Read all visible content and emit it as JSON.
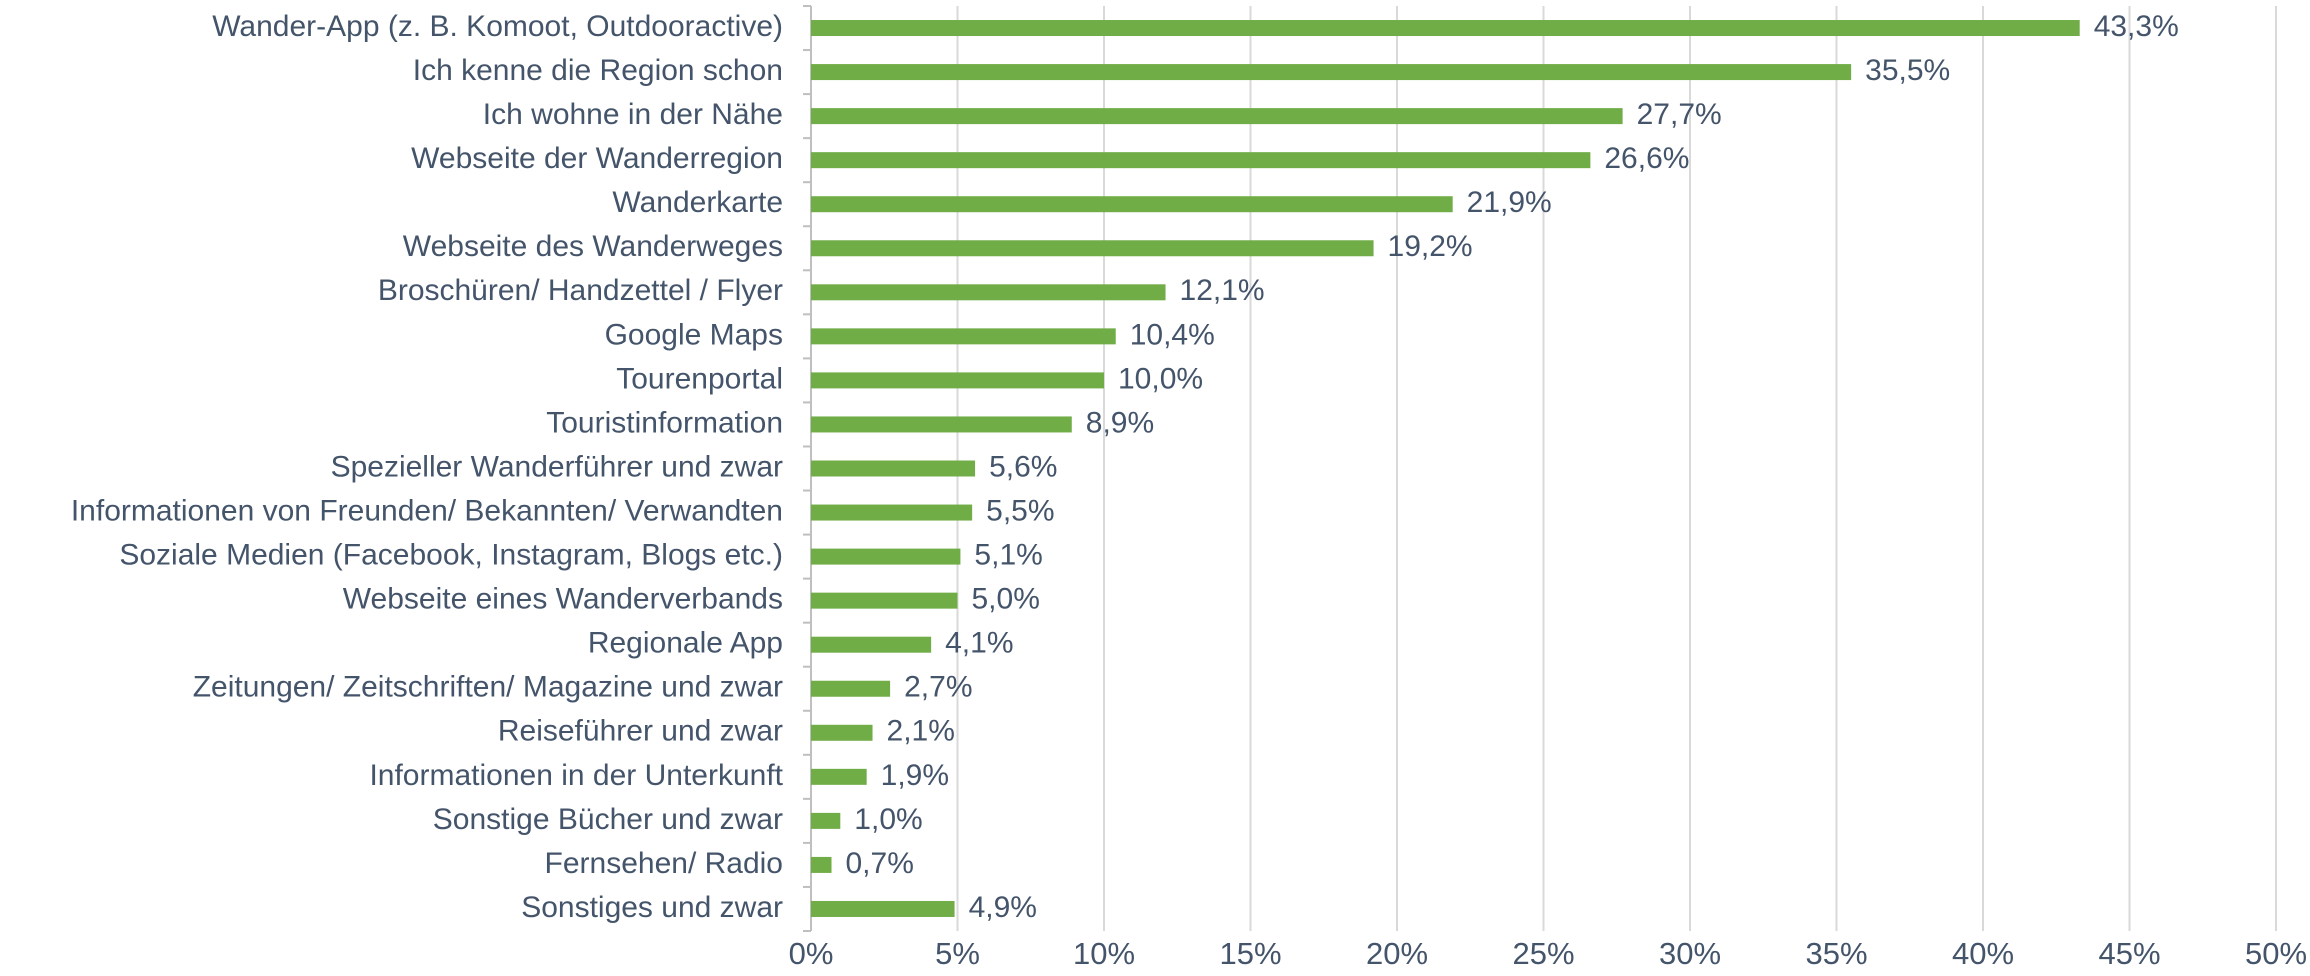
{
  "chart_data": {
    "type": "bar",
    "orientation": "horizontal",
    "categories": [
      "Wander-App (z. B. Komoot, Outdooractive)",
      "Ich kenne die Region schon",
      "Ich wohne in der Nähe",
      "Webseite der Wanderregion",
      "Wanderkarte",
      "Webseite des Wanderweges",
      "Broschüren/ Handzettel / Flyer",
      "Google Maps",
      "Tourenportal",
      "Touristinformation",
      "Spezieller Wanderführer und zwar",
      "Informationen von Freunden/ Bekannten/ Verwandten",
      "Soziale Medien (Facebook, Instagram, Blogs etc.)",
      "Webseite eines Wanderverbands",
      "Regionale App",
      "Zeitungen/ Zeitschriften/ Magazine und zwar",
      "Reiseführer und zwar",
      "Informationen in der Unterkunft",
      "Sonstige Bücher und zwar",
      "Fernsehen/ Radio",
      "Sonstiges und zwar"
    ],
    "values": [
      43.3,
      35.5,
      27.7,
      26.6,
      21.9,
      19.2,
      12.1,
      10.4,
      10.0,
      8.9,
      5.6,
      5.5,
      5.1,
      5.0,
      4.1,
      2.7,
      2.1,
      1.9,
      1.0,
      0.7,
      4.9
    ],
    "value_labels": [
      "43,3%",
      "35,5%",
      "27,7%",
      "26,6%",
      "21,9%",
      "19,2%",
      "12,1%",
      "10,4%",
      "10,0%",
      "8,9%",
      "5,6%",
      "5,5%",
      "5,1%",
      "5,0%",
      "4,1%",
      "2,7%",
      "2,1%",
      "1,9%",
      "1,0%",
      "0,7%",
      "4,9%"
    ],
    "color": "#70ad47",
    "xlim": [
      0,
      50
    ],
    "xticks": [
      {
        "value": 0,
        "label": "0%"
      },
      {
        "value": 5,
        "label": "5%"
      },
      {
        "value": 10,
        "label": "10%"
      },
      {
        "value": 15,
        "label": "15%"
      },
      {
        "value": 20,
        "label": "20%"
      },
      {
        "value": 25,
        "label": "25%"
      },
      {
        "value": 30,
        "label": "30%"
      },
      {
        "value": 35,
        "label": "35%"
      },
      {
        "value": 40,
        "label": "40%"
      },
      {
        "value": 45,
        "label": "45%"
      },
      {
        "value": 50,
        "label": "50%"
      }
    ],
    "grid": true
  }
}
